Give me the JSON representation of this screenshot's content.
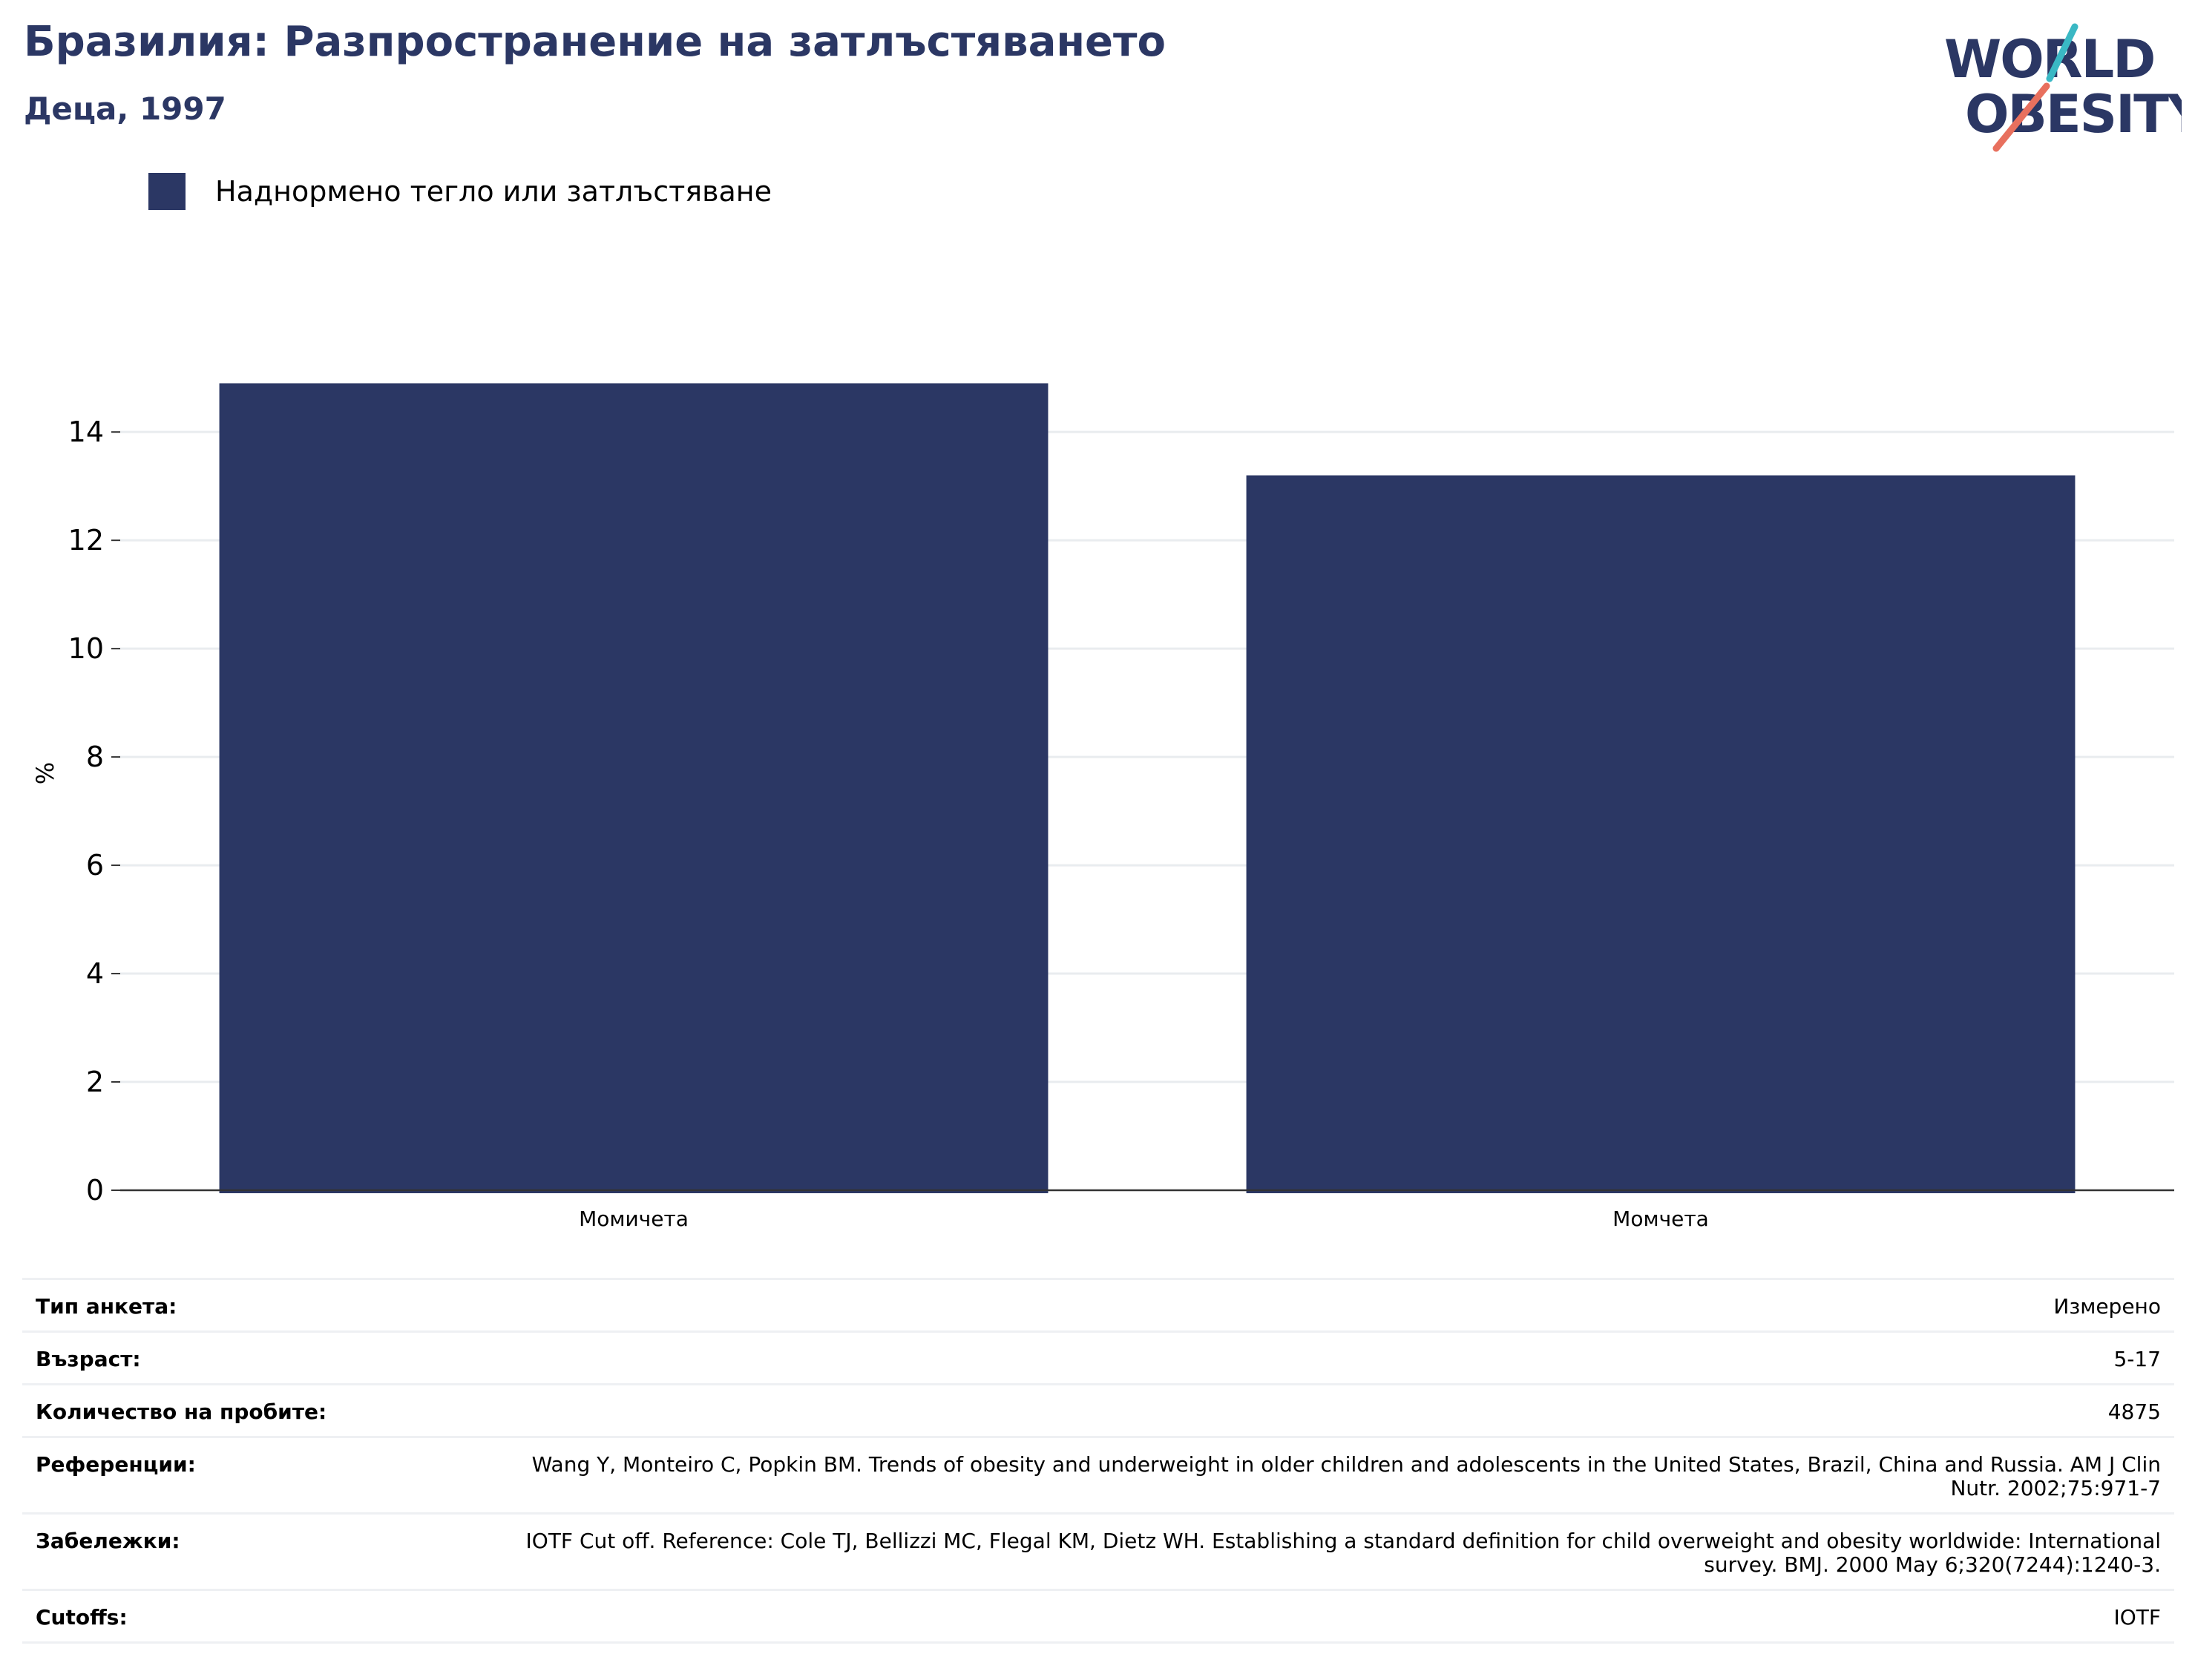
{
  "header": {
    "title": "Бразилия: Разпространение на затлъстяването",
    "subtitle": "Деца, 1997"
  },
  "logo": {
    "line1": "WORLD",
    "line2": "OBESITY",
    "colors": {
      "text": "#2b3764",
      "slash_teal": "#3ab8c4",
      "slash_coral": "#e8705e"
    }
  },
  "legend": {
    "items": [
      {
        "label": "Наднормено тегло или затлъстяване",
        "color": "#2b3764"
      }
    ]
  },
  "chart_data": {
    "type": "bar",
    "categories": [
      "Момичета",
      "Момчета"
    ],
    "series": [
      {
        "name": "Наднормено тегло или затлъстяване",
        "values": [
          14.9,
          13.2
        ],
        "color": "#2b3764"
      }
    ],
    "xlabel": "",
    "ylabel": "%",
    "ylim": [
      0,
      15.4
    ],
    "yticks": [
      0,
      2,
      4,
      6,
      8,
      10,
      12,
      14
    ],
    "grid": true,
    "legend_position": "top-left"
  },
  "info": {
    "rows": [
      {
        "key": "Тип анкета:",
        "value": "Измерено"
      },
      {
        "key": "Възраст:",
        "value": "5-17"
      },
      {
        "key": "Количество на пробите:",
        "value": "4875"
      },
      {
        "key": "Референции:",
        "value": "Wang Y, Monteiro C, Popkin BM. Trends of obesity and underweight in older children and adolescents in the United States, Brazil, China and Russia. AM J Clin Nutr. 2002;75:971-7"
      },
      {
        "key": "Забележки:",
        "value": "IOTF Cut off. Reference: Cole TJ, Bellizzi MC, Flegal KM, Dietz WH. Establishing a standard definition for child overweight and obesity worldwide: International survey. BMJ. 2000 May 6;320(7244):1240-3."
      },
      {
        "key": "Cutoffs:",
        "value": "IOTF"
      }
    ]
  }
}
